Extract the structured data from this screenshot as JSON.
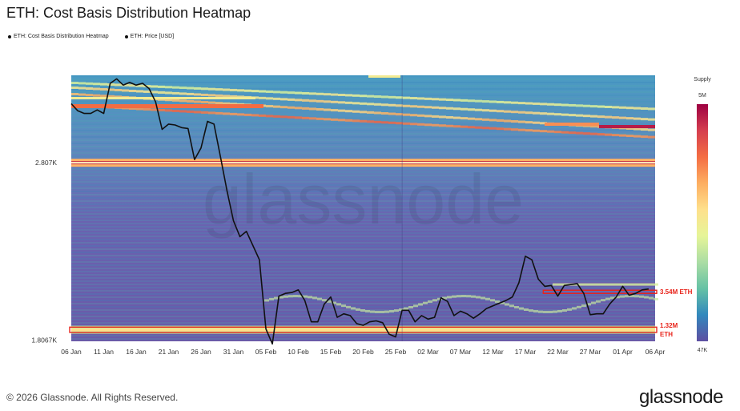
{
  "title": "ETH: Cost Basis Distribution Heatmap",
  "legend": [
    {
      "label": "ETH: Cost Basis Distribution Heatmap",
      "icon": "dot-icon"
    },
    {
      "label": "ETH: Price [USD]",
      "icon": "dot-icon"
    }
  ],
  "footer": "© 2026 Glassnode. All Rights Reserved.",
  "logo": "glassnode",
  "watermark": "glassnode",
  "chart_data": {
    "type": "heatmap",
    "title": "ETH: Cost Basis Distribution Heatmap",
    "x_tick_labels": [
      "06 Jan",
      "11 Jan",
      "16 Jan",
      "21 Jan",
      "26 Jan",
      "31 Jan",
      "05 Feb",
      "10 Feb",
      "15 Feb",
      "20 Feb",
      "25 Feb",
      "02 Mar",
      "07 Mar",
      "12 Mar",
      "17 Mar",
      "22 Mar",
      "27 Mar",
      "01 Apr",
      "06 Apr"
    ],
    "y_tick_labels": [
      "2.807K",
      "1.8067K"
    ],
    "y_ticks": [
      2807,
      1806.7
    ],
    "x_range": [
      0,
      90
    ],
    "y_range": [
      1800,
      3300
    ],
    "colorbar": {
      "title": "Supply",
      "max_label": "5M",
      "min_label": "47K",
      "colors": [
        "#5e4fa2",
        "#3288bd",
        "#66c2a5",
        "#abdda4",
        "#e6f598",
        "#fee08b",
        "#fdae61",
        "#f46d43",
        "#d53e4f",
        "#9e0142"
      ]
    },
    "bands": [
      {
        "price": 2807,
        "intensity": 0.82
      },
      {
        "price": 1865,
        "intensity": 0.45
      }
    ],
    "series": [
      {
        "name": "ETH: Price [USD]",
        "color": "#111111",
        "points": [
          [
            0,
            3140
          ],
          [
            1,
            3100
          ],
          [
            2,
            3085
          ],
          [
            3,
            3085
          ],
          [
            4,
            3105
          ],
          [
            5,
            3085
          ],
          [
            6,
            3255
          ],
          [
            7,
            3280
          ],
          [
            8,
            3245
          ],
          [
            9,
            3260
          ],
          [
            10,
            3245
          ],
          [
            11,
            3255
          ],
          [
            12,
            3225
          ],
          [
            13,
            3150
          ],
          [
            14,
            2995
          ],
          [
            15,
            3025
          ],
          [
            16,
            3020
          ],
          [
            17,
            3005
          ],
          [
            18,
            3000
          ],
          [
            19,
            2825
          ],
          [
            20,
            2890
          ],
          [
            21,
            3040
          ],
          [
            22,
            3025
          ],
          [
            23,
            2840
          ],
          [
            24,
            2650
          ],
          [
            25,
            2480
          ],
          [
            26,
            2390
          ],
          [
            27,
            2420
          ],
          [
            28,
            2340
          ],
          [
            29,
            2260
          ],
          [
            30,
            1870
          ],
          [
            31,
            1785
          ],
          [
            32,
            2055
          ],
          [
            33,
            2070
          ],
          [
            34,
            2075
          ],
          [
            35,
            2090
          ],
          [
            36,
            2030
          ],
          [
            37,
            1910
          ],
          [
            38,
            1910
          ],
          [
            39,
            2010
          ],
          [
            40,
            2050
          ],
          [
            41,
            1935
          ],
          [
            42,
            1955
          ],
          [
            43,
            1945
          ],
          [
            44,
            1900
          ],
          [
            45,
            1890
          ],
          [
            46,
            1910
          ],
          [
            47,
            1915
          ],
          [
            48,
            1905
          ],
          [
            49,
            1840
          ],
          [
            50,
            1825
          ],
          [
            51,
            1975
          ],
          [
            52,
            1975
          ],
          [
            53,
            1910
          ],
          [
            54,
            1945
          ],
          [
            55,
            1925
          ],
          [
            56,
            1935
          ],
          [
            57,
            2045
          ],
          [
            58,
            2025
          ],
          [
            59,
            1945
          ],
          [
            60,
            1970
          ],
          [
            61,
            1955
          ],
          [
            62,
            1930
          ],
          [
            63,
            1955
          ],
          [
            64,
            1985
          ],
          [
            65,
            2000
          ],
          [
            66,
            2015
          ],
          [
            67,
            2030
          ],
          [
            68,
            2050
          ],
          [
            69,
            2130
          ],
          [
            70,
            2280
          ],
          [
            71,
            2260
          ],
          [
            72,
            2150
          ],
          [
            73,
            2110
          ],
          [
            74,
            2115
          ],
          [
            75,
            2055
          ],
          [
            76,
            2115
          ],
          [
            77,
            2120
          ],
          [
            78,
            2125
          ],
          [
            79,
            2070
          ],
          [
            80,
            1950
          ],
          [
            81,
            1955
          ],
          [
            82,
            1955
          ],
          [
            83,
            2010
          ],
          [
            84,
            2050
          ],
          [
            85,
            2110
          ],
          [
            86,
            2060
          ],
          [
            87,
            2070
          ],
          [
            88,
            2090
          ],
          [
            89,
            2095
          ]
        ]
      }
    ],
    "annotations": [
      {
        "text_lines": [
          "3.54M ETH"
        ],
        "price_low": 2070,
        "price_high": 2088,
        "x_start": 73,
        "x_end": 90,
        "color": "#e8231a"
      },
      {
        "text_lines": [
          "1.32M",
          "ETH"
        ],
        "price_low": 1850,
        "price_high": 1880,
        "x_start": 0,
        "x_end": 90,
        "color": "#e8231a"
      }
    ]
  }
}
